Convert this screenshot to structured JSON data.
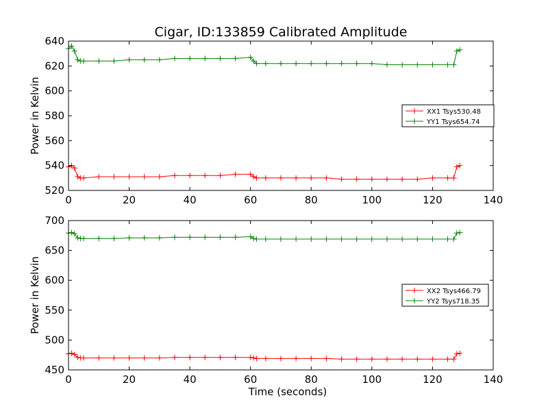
{
  "figure": {
    "title": "Cigar, ID:133859 Calibrated Amplitude"
  },
  "chart_data": [
    {
      "type": "line",
      "title": "Cigar, ID:133859 Calibrated Amplitude",
      "xlabel": "",
      "ylabel": "Power in Kelvin",
      "xlim": [
        0,
        140
      ],
      "ylim": [
        520,
        640
      ],
      "xticks": [
        "0",
        "20",
        "40",
        "60",
        "80",
        "100",
        "120",
        "140"
      ],
      "yticks": [
        "520",
        "540",
        "560",
        "580",
        "600",
        "620",
        "640"
      ],
      "grid": false,
      "legend_position": "right",
      "marker": "+",
      "series": [
        {
          "name": "XX1 Tsys530.48",
          "color": "#ff0000",
          "x": [
            0,
            1,
            2,
            3,
            4,
            5,
            10,
            15,
            20,
            25,
            30,
            35,
            40,
            45,
            50,
            55,
            60,
            61,
            62,
            65,
            70,
            75,
            80,
            85,
            90,
            95,
            100,
            105,
            110,
            115,
            120,
            125,
            127,
            128,
            129
          ],
          "y": [
            539,
            540,
            538,
            531,
            530,
            530,
            531,
            531,
            531,
            531,
            531,
            532,
            532,
            532,
            532,
            533,
            533,
            531,
            530,
            530,
            530,
            530,
            530,
            530,
            529,
            529,
            529,
            529,
            529,
            529,
            530,
            530,
            530,
            539,
            540
          ]
        },
        {
          "name": "YY1 Tsys654.74",
          "color": "#008000",
          "x": [
            0,
            1,
            2,
            3,
            4,
            5,
            10,
            15,
            20,
            25,
            30,
            35,
            40,
            45,
            50,
            55,
            60,
            61,
            62,
            65,
            70,
            75,
            80,
            85,
            90,
            95,
            100,
            105,
            110,
            115,
            120,
            125,
            127,
            128,
            129
          ],
          "y": [
            634,
            636,
            632,
            625,
            624,
            624,
            624,
            624,
            625,
            625,
            625,
            626,
            626,
            626,
            626,
            626,
            627,
            624,
            622,
            622,
            622,
            622,
            622,
            622,
            622,
            622,
            622,
            621,
            621,
            621,
            621,
            621,
            621,
            632,
            633
          ]
        }
      ]
    },
    {
      "type": "line",
      "title": "",
      "xlabel": "Time (seconds)",
      "ylabel": "Power in Kelvin",
      "xlim": [
        0,
        140
      ],
      "ylim": [
        450,
        700
      ],
      "xticks": [
        "0",
        "20",
        "40",
        "60",
        "80",
        "100",
        "120",
        "140"
      ],
      "yticks": [
        "450",
        "500",
        "550",
        "600",
        "650",
        "700"
      ],
      "grid": false,
      "legend_position": "right",
      "marker": "+",
      "series": [
        {
          "name": "XX2 Tsys466.79",
          "color": "#ff0000",
          "x": [
            0,
            1,
            2,
            3,
            4,
            5,
            10,
            15,
            20,
            25,
            30,
            35,
            40,
            45,
            50,
            55,
            60,
            61,
            62,
            65,
            70,
            75,
            80,
            85,
            90,
            95,
            100,
            105,
            110,
            115,
            120,
            125,
            127,
            128,
            129
          ],
          "y": [
            477,
            478,
            476,
            471,
            470,
            470,
            470,
            470,
            470,
            470,
            470,
            471,
            471,
            471,
            471,
            471,
            471,
            470,
            469,
            469,
            469,
            469,
            469,
            469,
            468,
            468,
            468,
            468,
            468,
            468,
            468,
            468,
            468,
            477,
            478
          ]
        },
        {
          "name": "YY2 Tsys718.35",
          "color": "#008000",
          "x": [
            0,
            1,
            2,
            3,
            4,
            5,
            10,
            15,
            20,
            25,
            30,
            35,
            40,
            45,
            50,
            55,
            60,
            61,
            62,
            65,
            70,
            75,
            80,
            85,
            90,
            95,
            100,
            105,
            110,
            115,
            120,
            125,
            127,
            128,
            129
          ],
          "y": [
            679,
            680,
            678,
            671,
            670,
            670,
            670,
            670,
            671,
            671,
            671,
            672,
            672,
            672,
            672,
            672,
            673,
            670,
            669,
            669,
            669,
            669,
            669,
            669,
            669,
            669,
            669,
            669,
            669,
            669,
            669,
            669,
            669,
            679,
            680
          ]
        }
      ]
    }
  ]
}
